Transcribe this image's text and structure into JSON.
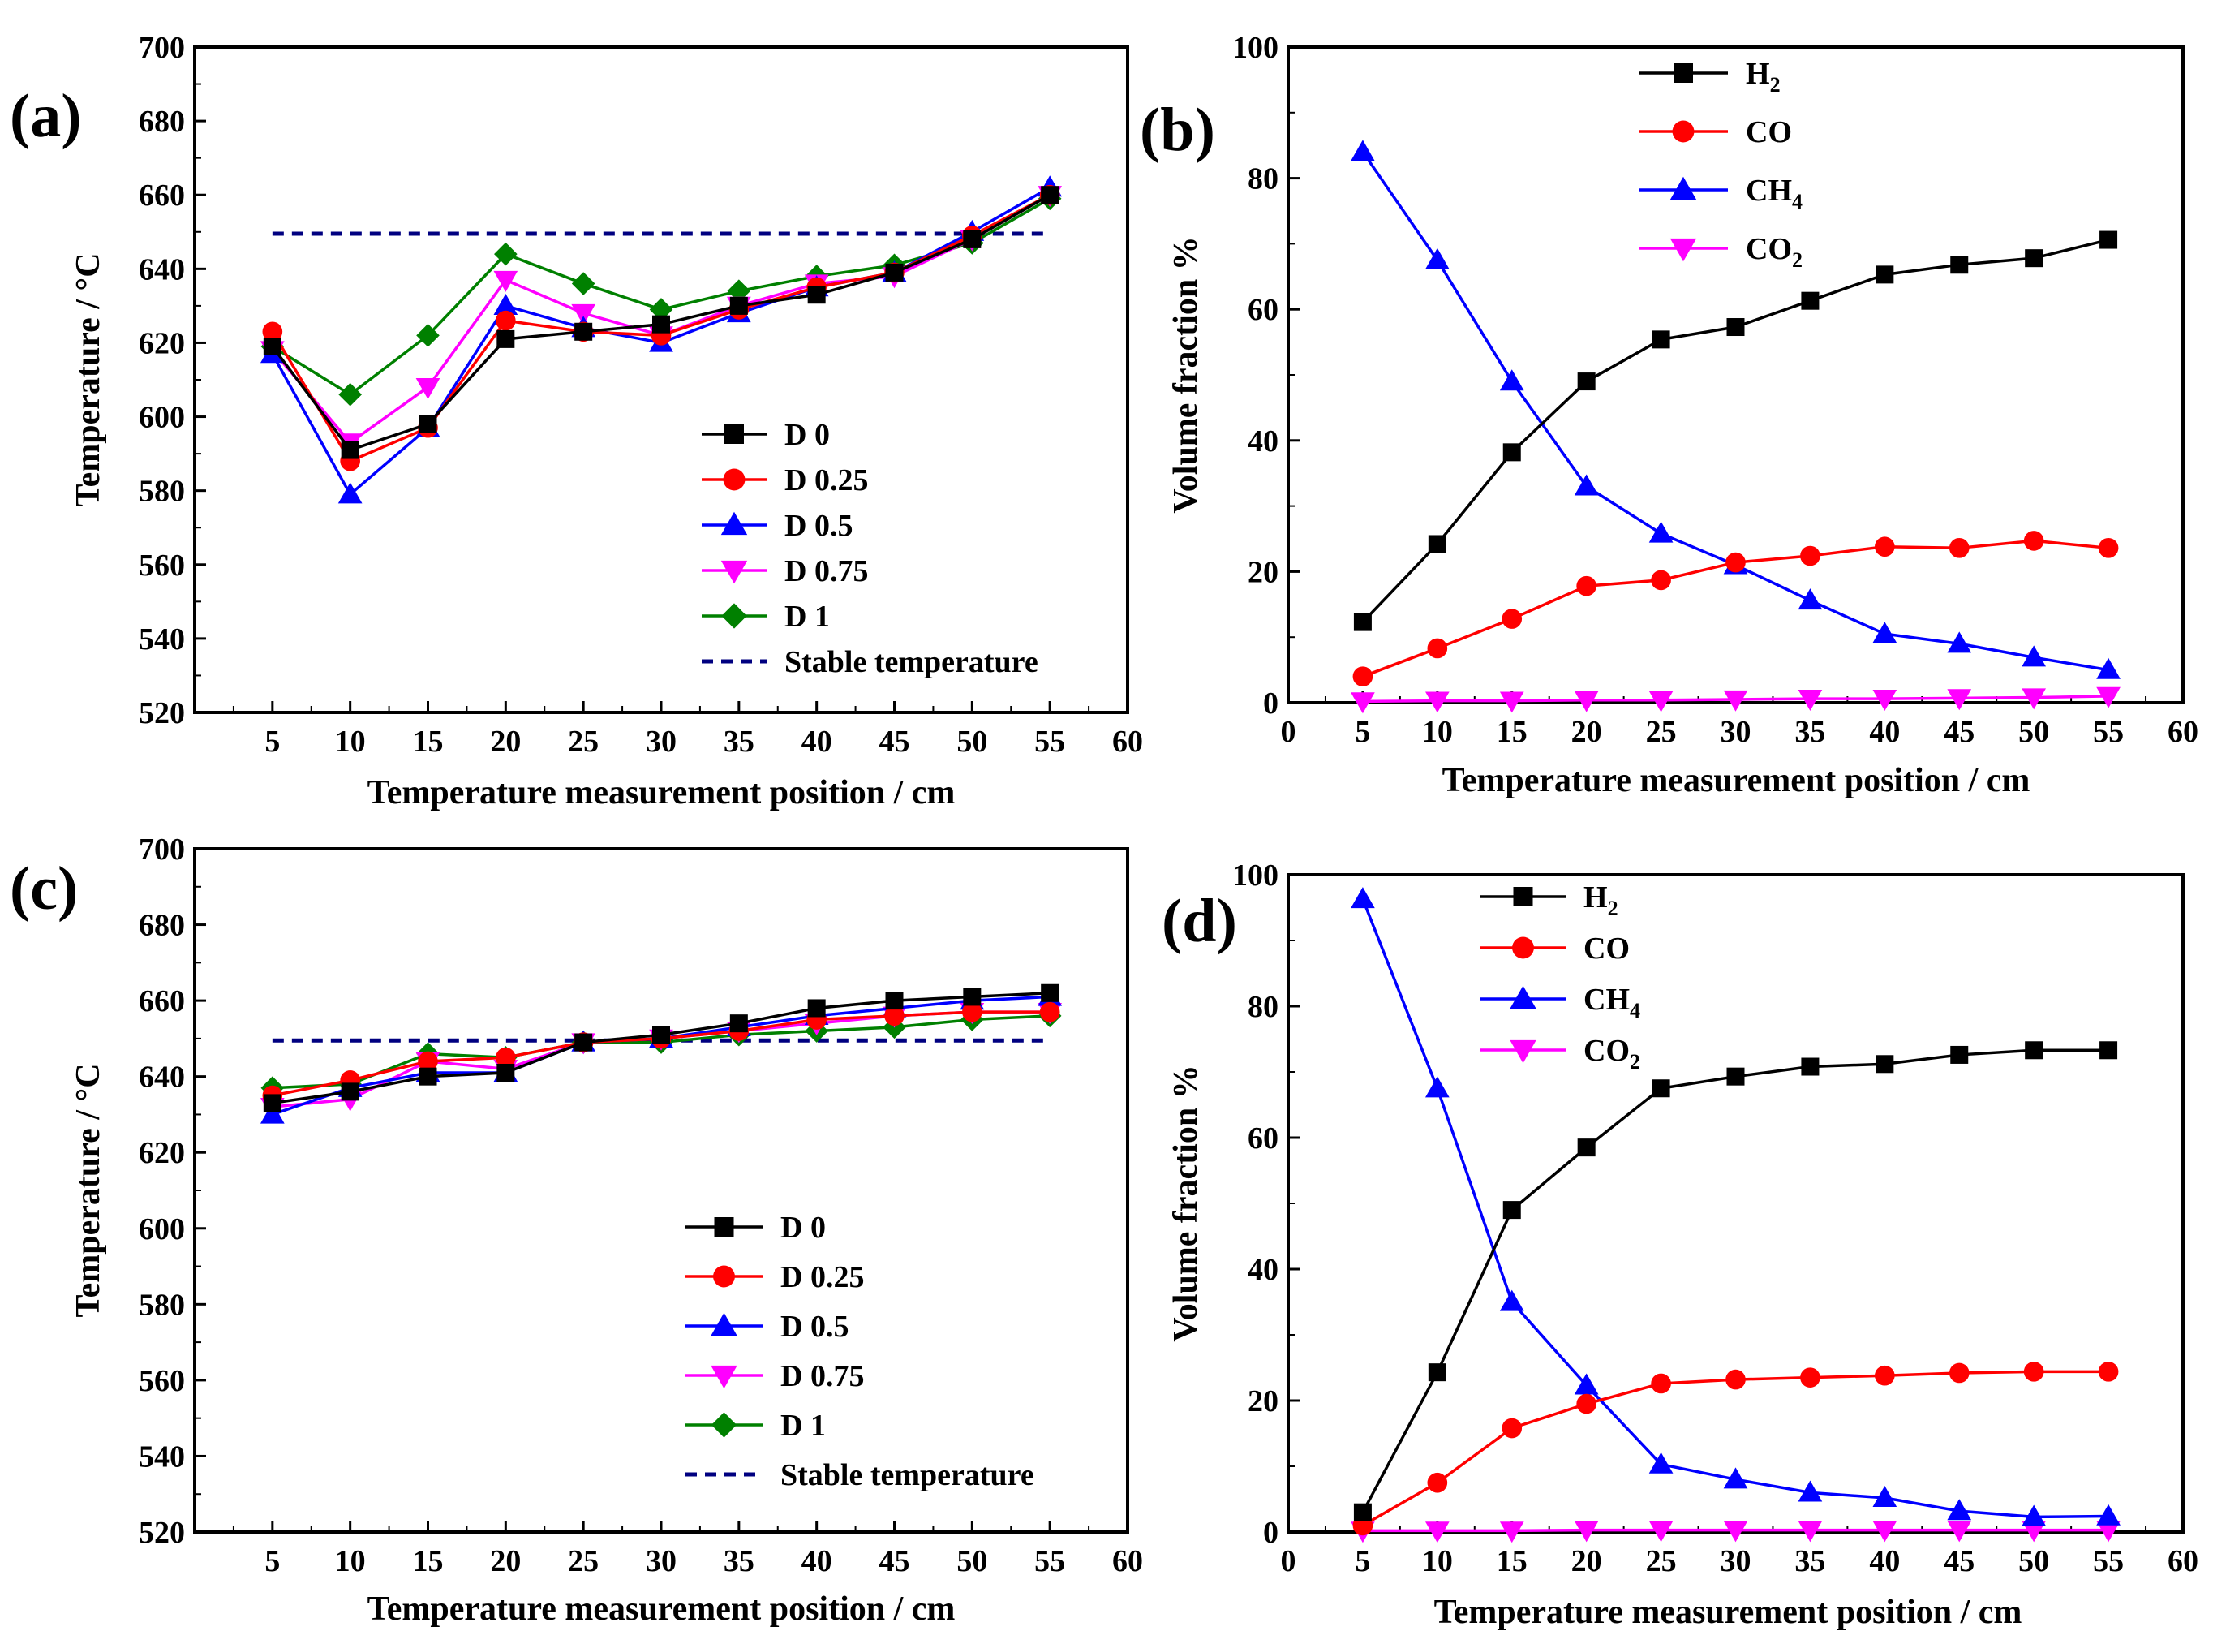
{
  "colors": {
    "black": "#000000",
    "red": "#ff0000",
    "blue": "#0000ff",
    "magenta": "#ff00ff",
    "green": "#008000",
    "navy": "#000080"
  },
  "chart_data": [
    {
      "id": "a",
      "type": "line",
      "panel_label": "(a)",
      "xlabel": "Temperature measurement position / cm",
      "ylabel": "Temperature  / °C",
      "xlim": [
        0,
        60
      ],
      "ylim": [
        520,
        700
      ],
      "xticks": [
        5,
        10,
        15,
        20,
        25,
        30,
        35,
        40,
        45,
        50,
        55,
        60
      ],
      "yticks": [
        520,
        540,
        560,
        580,
        600,
        620,
        640,
        660,
        680,
        700
      ],
      "x": [
        5,
        10,
        15,
        20,
        25,
        30,
        35,
        40,
        45,
        50,
        55
      ],
      "legend_position": "bottom-right",
      "series": [
        {
          "name": "D 0",
          "color": "#000000",
          "marker": "square",
          "values": [
            619,
            591,
            598,
            621,
            623,
            625,
            630,
            633,
            639,
            648,
            660
          ]
        },
        {
          "name": "D 0.25",
          "color": "#ff0000",
          "marker": "circle",
          "values": [
            623,
            588,
            597,
            626,
            623,
            622,
            629,
            635,
            639,
            649,
            660
          ]
        },
        {
          "name": "D 0.5",
          "color": "#0000ff",
          "marker": "triangle-up",
          "values": [
            617,
            579,
            597,
            630,
            624,
            620,
            628,
            635,
            639,
            650,
            662
          ]
        },
        {
          "name": "D 0.75",
          "color": "#ff00ff",
          "marker": "triangle-down",
          "values": [
            618,
            593,
            608,
            637,
            628,
            622,
            630,
            636,
            638,
            648,
            660
          ]
        },
        {
          "name": "D 1",
          "color": "#008000",
          "marker": "diamond",
          "values": [
            619,
            606,
            622,
            644,
            636,
            629,
            634,
            638,
            641,
            647,
            659
          ]
        },
        {
          "name": "Stable temperature",
          "color": "#000080",
          "marker": "none",
          "dashed": true,
          "x": [
            5,
            55
          ],
          "values": [
            649.5,
            649.5
          ]
        }
      ]
    },
    {
      "id": "b",
      "type": "line",
      "panel_label": "(b)",
      "xlabel": "Temperature measurement position / cm",
      "ylabel": "Volume fraction %",
      "xlim": [
        0,
        60
      ],
      "ylim": [
        0,
        100
      ],
      "xticks": [
        0,
        5,
        10,
        15,
        20,
        25,
        30,
        35,
        40,
        45,
        50,
        55,
        60
      ],
      "yticks": [
        0,
        20,
        40,
        60,
        80,
        100
      ],
      "x": [
        5,
        10,
        15,
        20,
        25,
        30,
        35,
        40,
        45,
        50,
        55
      ],
      "legend_position": "top",
      "series": [
        {
          "name": "H2",
          "base": "H",
          "sub": "2",
          "color": "#000000",
          "marker": "square",
          "values": [
            12.3,
            24.2,
            38.2,
            49.0,
            55.4,
            57.3,
            61.3,
            65.3,
            66.8,
            67.8,
            70.6
          ]
        },
        {
          "name": "CO",
          "base": "CO",
          "sub": "",
          "color": "#ff0000",
          "marker": "circle",
          "values": [
            4.0,
            8.3,
            12.8,
            17.8,
            18.7,
            21.4,
            22.4,
            23.8,
            23.6,
            24.7,
            23.6
          ]
        },
        {
          "name": "CH4",
          "base": "CH",
          "sub": "4",
          "color": "#0000ff",
          "marker": "triangle-up",
          "values": [
            84.0,
            67.5,
            49.0,
            33.0,
            25.8,
            21.0,
            15.6,
            10.5,
            9.0,
            6.9,
            5.0
          ]
        },
        {
          "name": "CO2",
          "base": "CO",
          "sub": "2",
          "color": "#ff00ff",
          "marker": "triangle-down",
          "values": [
            0.2,
            0.3,
            0.3,
            0.4,
            0.4,
            0.5,
            0.6,
            0.6,
            0.7,
            0.8,
            1.0
          ]
        }
      ]
    },
    {
      "id": "c",
      "type": "line",
      "panel_label": "(c)",
      "xlabel": "Temperature measurement position / cm",
      "ylabel": "Temperature  / °C",
      "xlim": [
        0,
        60
      ],
      "ylim": [
        520,
        700
      ],
      "xticks": [
        5,
        10,
        15,
        20,
        25,
        30,
        35,
        40,
        45,
        50,
        55,
        60
      ],
      "yticks": [
        520,
        540,
        560,
        580,
        600,
        620,
        640,
        660,
        680,
        700
      ],
      "x": [
        5,
        10,
        15,
        20,
        25,
        30,
        35,
        40,
        45,
        50,
        55
      ],
      "legend_position": "bottom-right",
      "series": [
        {
          "name": "D 0",
          "color": "#000000",
          "marker": "square",
          "values": [
            633,
            636,
            640,
            641,
            649,
            651,
            654,
            658,
            660,
            661,
            662
          ]
        },
        {
          "name": "D 0.25",
          "color": "#ff0000",
          "marker": "circle",
          "values": [
            635,
            639,
            644,
            645,
            649,
            650,
            652,
            655,
            656,
            657,
            657
          ]
        },
        {
          "name": "D 0.5",
          "color": "#0000ff",
          "marker": "triangle-up",
          "values": [
            630,
            637,
            641,
            641,
            649,
            650,
            653,
            656,
            658,
            660,
            661
          ]
        },
        {
          "name": "D 0.75",
          "color": "#ff00ff",
          "marker": "triangle-down",
          "values": [
            632,
            634,
            644,
            642,
            649,
            650,
            652,
            654,
            656,
            657,
            657
          ]
        },
        {
          "name": "D 1",
          "color": "#008000",
          "marker": "diamond",
          "values": [
            637,
            638,
            646,
            645,
            649,
            649,
            651,
            652,
            653,
            655,
            656
          ]
        },
        {
          "name": "Stable temperature",
          "color": "#000080",
          "marker": "none",
          "dashed": true,
          "x": [
            5,
            55
          ],
          "values": [
            649.5,
            649.5
          ]
        }
      ]
    },
    {
      "id": "d",
      "type": "line",
      "panel_label": "(d)",
      "xlabel": "Temperature measurement position / cm",
      "ylabel": "Volume fraction %",
      "xlim": [
        0,
        60
      ],
      "ylim": [
        0,
        100
      ],
      "xticks": [
        0,
        5,
        10,
        15,
        20,
        25,
        30,
        35,
        40,
        45,
        50,
        55,
        60
      ],
      "yticks": [
        0,
        20,
        40,
        60,
        80,
        100
      ],
      "x": [
        5,
        10,
        15,
        20,
        25,
        30,
        35,
        40,
        45,
        50,
        55
      ],
      "legend_position": "top-left",
      "series": [
        {
          "name": "H2",
          "base": "H",
          "sub": "2",
          "color": "#000000",
          "marker": "square",
          "values": [
            3.0,
            24.3,
            49.0,
            58.5,
            67.5,
            69.3,
            70.8,
            71.2,
            72.6,
            73.3,
            73.3
          ]
        },
        {
          "name": "CO",
          "base": "CO",
          "sub": "",
          "color": "#ff0000",
          "marker": "circle",
          "values": [
            1.0,
            7.5,
            15.8,
            19.5,
            22.6,
            23.2,
            23.5,
            23.8,
            24.2,
            24.4,
            24.4
          ]
        },
        {
          "name": "CH4",
          "base": "CH",
          "sub": "4",
          "color": "#0000ff",
          "marker": "triangle-up",
          "values": [
            96.3,
            67.5,
            35.0,
            22.3,
            10.3,
            8.0,
            6.0,
            5.2,
            3.2,
            2.3,
            2.4
          ]
        },
        {
          "name": "CO2",
          "base": "CO",
          "sub": "2",
          "color": "#ff00ff",
          "marker": "triangle-down",
          "values": [
            0.2,
            0.2,
            0.2,
            0.3,
            0.3,
            0.3,
            0.3,
            0.3,
            0.3,
            0.3,
            0.3
          ]
        }
      ]
    }
  ]
}
